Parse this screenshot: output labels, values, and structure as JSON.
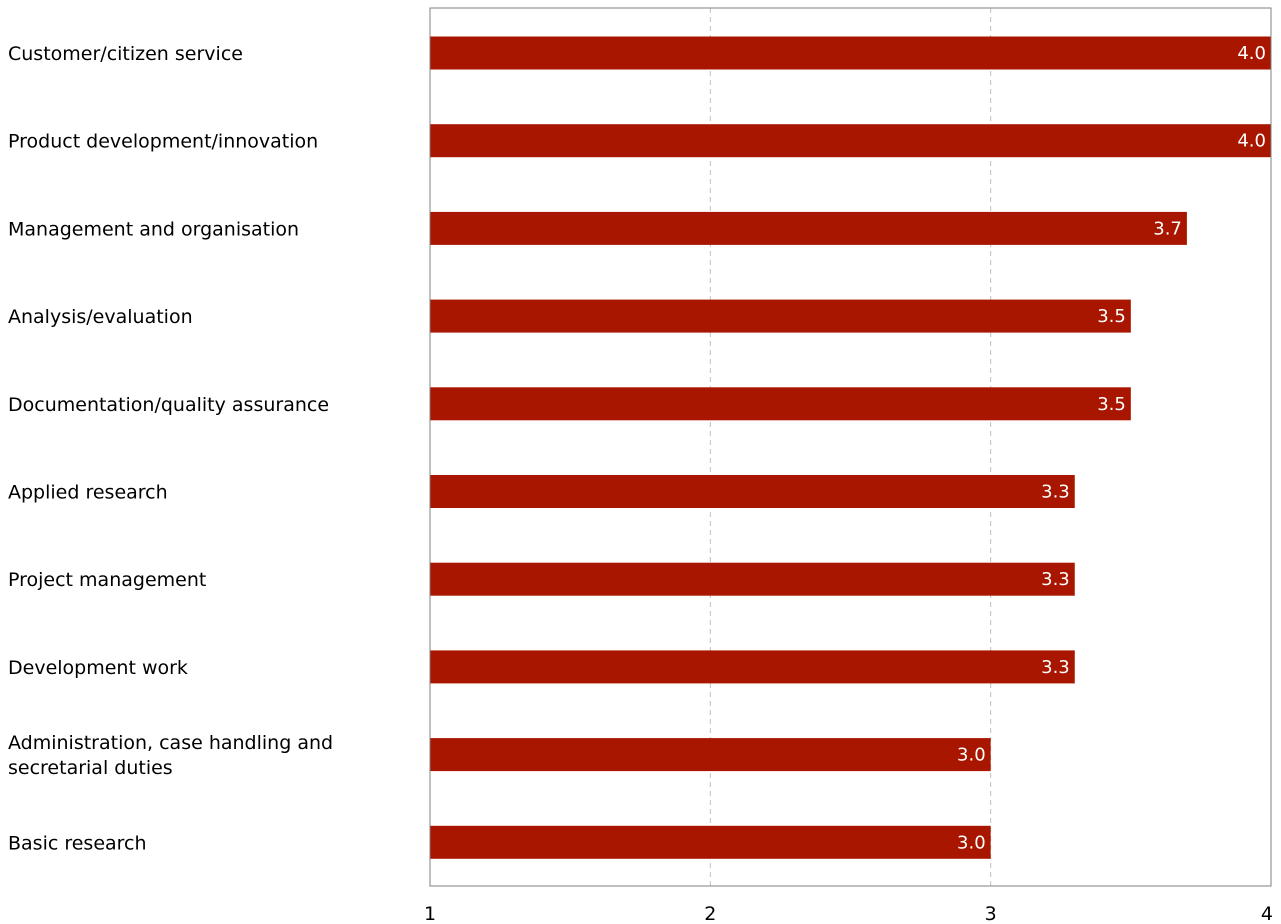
{
  "chart_data": {
    "type": "bar",
    "orientation": "horizontal",
    "categories": [
      "Customer/citizen service",
      "Product development/innovation",
      "Management and organisation",
      "Analysis/evaluation",
      "Documentation/quality assurance",
      "Applied research",
      "Project management",
      "Development work",
      [
        "Administration, case handling and",
        "secretarial duties"
      ],
      "Basic research"
    ],
    "values": [
      4.0,
      4.0,
      3.7,
      3.5,
      3.5,
      3.3,
      3.3,
      3.3,
      3.0,
      3.0
    ],
    "value_labels": [
      "4.0",
      "4.0",
      "3.7",
      "3.5",
      "3.5",
      "3.3",
      "3.3",
      "3.3",
      "3.0",
      "3.0"
    ],
    "xlim": [
      1,
      4
    ],
    "xticks": [
      1,
      2,
      3,
      4
    ],
    "xtick_labels": [
      "1",
      "2",
      "3",
      "4"
    ],
    "grid": "vertical dashed",
    "title": "",
    "xlabel": "",
    "ylabel": "",
    "colors": {
      "bar": "#a91600",
      "grid": "#c0c0c0",
      "frame": "#808080"
    }
  }
}
